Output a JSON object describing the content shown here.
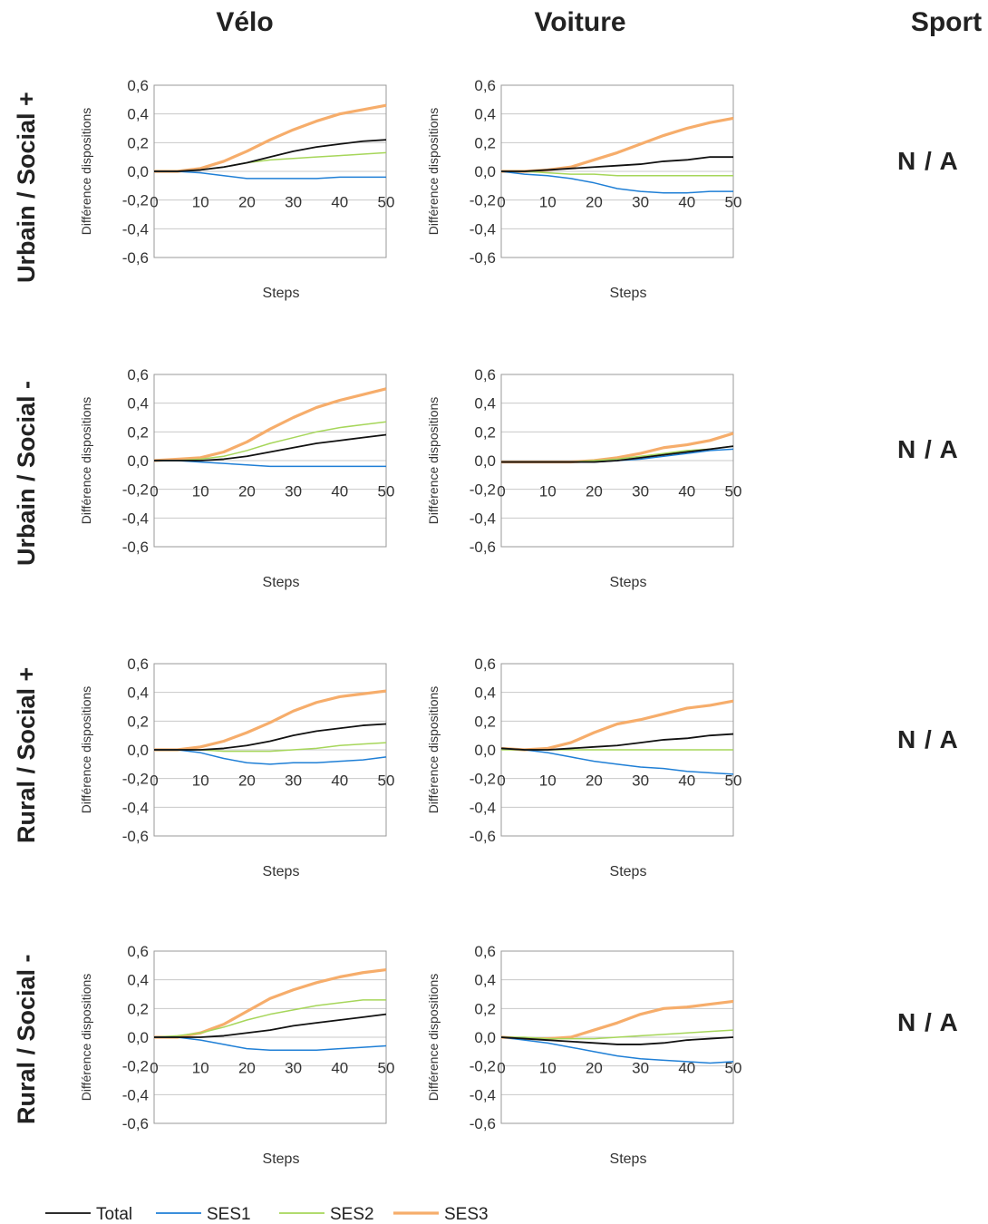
{
  "columns": [
    "Vélo",
    "Voiture",
    "Sport"
  ],
  "rows": [
    "Urbain / Social +",
    "Urbain / Social -",
    "Rural / Social +",
    "Rural / Social -"
  ],
  "na_label": "N / A",
  "series_colors": {
    "Total": "#111111",
    "SES1": "#1f7fd6",
    "SES2": "#a6d65a",
    "SES3": "#f6ad6b"
  },
  "legend": [
    "Total",
    "SES1",
    "SES2",
    "SES3"
  ],
  "chart_data": [
    {
      "type": "line",
      "panel": "Urbain / Social + | Vélo",
      "xlabel": "Steps",
      "ylabel": "Différence dispositions",
      "xlim": [
        0,
        50
      ],
      "ylim": [
        -0.6,
        0.6
      ],
      "x": [
        0,
        5,
        10,
        15,
        20,
        25,
        30,
        35,
        40,
        45,
        50
      ],
      "series": [
        {
          "name": "Total",
          "values": [
            0,
            0,
            0.01,
            0.03,
            0.06,
            0.1,
            0.14,
            0.17,
            0.19,
            0.21,
            0.22
          ]
        },
        {
          "name": "SES1",
          "values": [
            0,
            0,
            -0.01,
            -0.03,
            -0.05,
            -0.05,
            -0.05,
            -0.05,
            -0.04,
            -0.04,
            -0.04
          ]
        },
        {
          "name": "SES2",
          "values": [
            0,
            0,
            0.01,
            0.03,
            0.06,
            0.08,
            0.09,
            0.1,
            0.11,
            0.12,
            0.13
          ]
        },
        {
          "name": "SES3",
          "values": [
            0,
            0,
            0.02,
            0.07,
            0.14,
            0.22,
            0.29,
            0.35,
            0.4,
            0.43,
            0.46
          ]
        }
      ]
    },
    {
      "type": "line",
      "panel": "Urbain / Social + | Voiture",
      "xlabel": "Steps",
      "ylabel": "Différence dispositions",
      "xlim": [
        0,
        50
      ],
      "ylim": [
        -0.6,
        0.6
      ],
      "x": [
        0,
        5,
        10,
        15,
        20,
        25,
        30,
        35,
        40,
        45,
        50
      ],
      "series": [
        {
          "name": "Total",
          "values": [
            0,
            0,
            0.01,
            0.02,
            0.03,
            0.04,
            0.05,
            0.07,
            0.08,
            0.1,
            0.1
          ]
        },
        {
          "name": "SES1",
          "values": [
            0,
            -0.02,
            -0.03,
            -0.05,
            -0.08,
            -0.12,
            -0.14,
            -0.15,
            -0.15,
            -0.14,
            -0.14
          ]
        },
        {
          "name": "SES2",
          "values": [
            0,
            0,
            -0.01,
            -0.02,
            -0.02,
            -0.03,
            -0.03,
            -0.03,
            -0.03,
            -0.03,
            -0.03
          ]
        },
        {
          "name": "SES3",
          "values": [
            0,
            0,
            0.01,
            0.03,
            0.08,
            0.13,
            0.19,
            0.25,
            0.3,
            0.34,
            0.37
          ]
        }
      ]
    },
    {
      "type": "line",
      "panel": "Urbain / Social - | Vélo",
      "xlabel": "Steps",
      "ylabel": "Différence dispositions",
      "xlim": [
        0,
        50
      ],
      "ylim": [
        -0.6,
        0.6
      ],
      "x": [
        0,
        5,
        10,
        15,
        20,
        25,
        30,
        35,
        40,
        45,
        50
      ],
      "series": [
        {
          "name": "Total",
          "values": [
            0,
            0,
            0,
            0.01,
            0.03,
            0.06,
            0.09,
            0.12,
            0.14,
            0.16,
            0.18
          ]
        },
        {
          "name": "SES1",
          "values": [
            0,
            0,
            -0.01,
            -0.02,
            -0.03,
            -0.04,
            -0.04,
            -0.04,
            -0.04,
            -0.04,
            -0.04
          ]
        },
        {
          "name": "SES2",
          "values": [
            0,
            0,
            0.01,
            0.03,
            0.07,
            0.12,
            0.16,
            0.2,
            0.23,
            0.25,
            0.27
          ]
        },
        {
          "name": "SES3",
          "values": [
            0,
            0.01,
            0.02,
            0.06,
            0.13,
            0.22,
            0.3,
            0.37,
            0.42,
            0.46,
            0.5
          ]
        }
      ]
    },
    {
      "type": "line",
      "panel": "Urbain / Social - | Voiture",
      "xlabel": "Steps",
      "ylabel": "Différence dispositions",
      "xlim": [
        0,
        50
      ],
      "ylim": [
        -0.6,
        0.6
      ],
      "x": [
        0,
        5,
        10,
        15,
        20,
        25,
        30,
        35,
        40,
        45,
        50
      ],
      "series": [
        {
          "name": "Total",
          "values": [
            -0.01,
            -0.01,
            -0.01,
            -0.01,
            -0.01,
            0,
            0.02,
            0.04,
            0.06,
            0.08,
            0.1
          ]
        },
        {
          "name": "SES1",
          "values": [
            -0.01,
            -0.01,
            -0.01,
            -0.01,
            -0.01,
            0,
            0.01,
            0.03,
            0.05,
            0.07,
            0.08
          ]
        },
        {
          "name": "SES2",
          "values": [
            -0.01,
            -0.01,
            -0.01,
            -0.01,
            0,
            0.01,
            0.03,
            0.05,
            0.07,
            0.08,
            0.1
          ]
        },
        {
          "name": "SES3",
          "values": [
            -0.01,
            -0.01,
            -0.01,
            -0.01,
            0,
            0.02,
            0.05,
            0.09,
            0.11,
            0.14,
            0.19
          ]
        }
      ]
    },
    {
      "type": "line",
      "panel": "Rural / Social + | Vélo",
      "xlabel": "Steps",
      "ylabel": "Différence dispositions",
      "xlim": [
        0,
        50
      ],
      "ylim": [
        -0.6,
        0.6
      ],
      "x": [
        0,
        5,
        10,
        15,
        20,
        25,
        30,
        35,
        40,
        45,
        50
      ],
      "series": [
        {
          "name": "Total",
          "values": [
            0,
            0,
            0,
            0.01,
            0.03,
            0.06,
            0.1,
            0.13,
            0.15,
            0.17,
            0.18
          ]
        },
        {
          "name": "SES1",
          "values": [
            0,
            0,
            -0.02,
            -0.06,
            -0.09,
            -0.1,
            -0.09,
            -0.09,
            -0.08,
            -0.07,
            -0.05
          ]
        },
        {
          "name": "SES2",
          "values": [
            0,
            0,
            0,
            -0.01,
            -0.01,
            -0.01,
            0,
            0.01,
            0.03,
            0.04,
            0.05
          ]
        },
        {
          "name": "SES3",
          "values": [
            0,
            0,
            0.02,
            0.06,
            0.12,
            0.19,
            0.27,
            0.33,
            0.37,
            0.39,
            0.41
          ]
        }
      ]
    },
    {
      "type": "line",
      "panel": "Rural / Social + | Voiture",
      "xlabel": "Steps",
      "ylabel": "Différence dispositions",
      "xlim": [
        0,
        50
      ],
      "ylim": [
        -0.6,
        0.6
      ],
      "x": [
        0,
        5,
        10,
        15,
        20,
        25,
        30,
        35,
        40,
        45,
        50
      ],
      "series": [
        {
          "name": "Total",
          "values": [
            0.01,
            0,
            0,
            0.01,
            0.02,
            0.03,
            0.05,
            0.07,
            0.08,
            0.1,
            0.11
          ]
        },
        {
          "name": "SES1",
          "values": [
            0.01,
            0,
            -0.02,
            -0.05,
            -0.08,
            -0.1,
            -0.12,
            -0.13,
            -0.15,
            -0.16,
            -0.17
          ]
        },
        {
          "name": "SES2",
          "values": [
            0,
            0,
            0,
            0,
            0,
            0,
            0,
            0,
            0,
            0,
            0
          ]
        },
        {
          "name": "SES3",
          "values": [
            0.01,
            0,
            0.01,
            0.05,
            0.12,
            0.18,
            0.21,
            0.25,
            0.29,
            0.31,
            0.34
          ]
        }
      ]
    },
    {
      "type": "line",
      "panel": "Rural / Social - | Vélo",
      "xlabel": "Steps",
      "ylabel": "Différence dispositions",
      "xlim": [
        0,
        50
      ],
      "ylim": [
        -0.6,
        0.6
      ],
      "x": [
        0,
        5,
        10,
        15,
        20,
        25,
        30,
        35,
        40,
        45,
        50
      ],
      "series": [
        {
          "name": "Total",
          "values": [
            0,
            0,
            0,
            0.01,
            0.03,
            0.05,
            0.08,
            0.1,
            0.12,
            0.14,
            0.16
          ]
        },
        {
          "name": "SES1",
          "values": [
            0,
            0,
            -0.02,
            -0.05,
            -0.08,
            -0.09,
            -0.09,
            -0.09,
            -0.08,
            -0.07,
            -0.06
          ]
        },
        {
          "name": "SES2",
          "values": [
            0,
            0.01,
            0.03,
            0.07,
            0.12,
            0.16,
            0.19,
            0.22,
            0.24,
            0.26,
            0.26
          ]
        },
        {
          "name": "SES3",
          "values": [
            0,
            0,
            0.03,
            0.09,
            0.18,
            0.27,
            0.33,
            0.38,
            0.42,
            0.45,
            0.47
          ]
        }
      ]
    },
    {
      "type": "line",
      "panel": "Rural / Social - | Voiture",
      "xlabel": "Steps",
      "ylabel": "Différence dispositions",
      "xlim": [
        0,
        50
      ],
      "ylim": [
        -0.6,
        0.6
      ],
      "x": [
        0,
        5,
        10,
        15,
        20,
        25,
        30,
        35,
        40,
        45,
        50
      ],
      "series": [
        {
          "name": "Total",
          "values": [
            0,
            -0.01,
            -0.02,
            -0.03,
            -0.04,
            -0.05,
            -0.05,
            -0.04,
            -0.02,
            -0.01,
            0
          ]
        },
        {
          "name": "SES1",
          "values": [
            0,
            -0.02,
            -0.04,
            -0.07,
            -0.1,
            -0.13,
            -0.15,
            -0.16,
            -0.17,
            -0.18,
            -0.17
          ]
        },
        {
          "name": "SES2",
          "values": [
            0,
            0,
            -0.01,
            -0.01,
            -0.01,
            0,
            0.01,
            0.02,
            0.03,
            0.04,
            0.05
          ]
        },
        {
          "name": "SES3",
          "values": [
            0,
            -0.01,
            -0.01,
            0,
            0.05,
            0.1,
            0.16,
            0.2,
            0.21,
            0.23,
            0.25
          ]
        }
      ]
    }
  ]
}
